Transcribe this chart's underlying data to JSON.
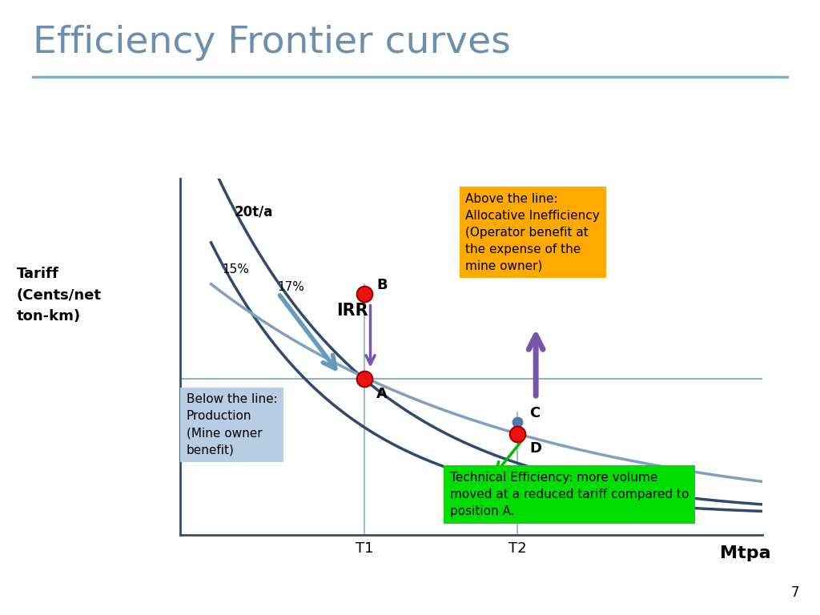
{
  "title": "Efficiency Frontier curves",
  "title_color": "#6a8faf",
  "title_fontsize": 34,
  "bg_color": "#ffffff",
  "curve_color_dark": "#2e4a6e",
  "curve_color_light": "#7fa0c0",
  "horizontal_line_color": "#90b0cc",
  "point_color_red": "#ee1111",
  "point_color_blue": "#5577aa",
  "label_15pct": "15%",
  "label_17pct": "17%",
  "label_20ta": "20t/a",
  "label_IRR": "IRR",
  "annotation_above": "Above the line:\nAllocative Inefficiency\n(Operator benefit at\nthe expense of the\nmine owner)",
  "annotation_above_bg": "#ffaa00",
  "annotation_below": "Below the line:\nProduction\n(Mine owner\nbenefit)",
  "annotation_below_bg": "#b8cce4",
  "annotation_tech": "Technical Efficiency: more volume\nmoved at a reduced tariff compared to\nposition A.",
  "annotation_tech_bg": "#00dd00",
  "purple_arrow_color": "#7755aa",
  "teal_arrow_color": "#6699bb",
  "green_arrow_color": "#00bb00",
  "spine_color": "#334d6e"
}
